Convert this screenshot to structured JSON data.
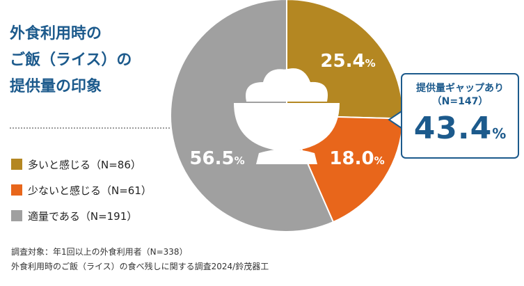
{
  "title_lines": [
    "外食利用時の",
    "ご飯（ライス）の",
    "提供量の印象"
  ],
  "legend": [
    {
      "label": "多いと感じる（N=86）",
      "color": "#b48722"
    },
    {
      "label": "少ないと感じる（N=61）",
      "color": "#e8661b"
    },
    {
      "label": "適量である（N=191）",
      "color": "#a0a0a0"
    }
  ],
  "callout": {
    "title": "提供量ギャップあり",
    "n": "（N=147）",
    "value": "43.4",
    "unit": "%"
  },
  "notes": [
    "調査対象：年1回以上の外食利用者（N=338）",
    "外食利用時のご飯（ライス）の食べ残しに関する調査2024/鈴茂器工"
  ],
  "chart_data": {
    "type": "pie",
    "labels": [
      "多いと感じる（N=86）",
      "少ないと感じる（N=61）",
      "適量である（N=191）"
    ],
    "values": [
      25.4,
      18.0,
      56.5
    ],
    "value_labels": [
      "25.4",
      "18.0",
      "56.5"
    ],
    "unit": "%",
    "colors": [
      "#b48722",
      "#e8661b",
      "#a0a0a0"
    ],
    "title": "外食利用時のご飯（ライス）の提供量の印象",
    "legend_position": "left",
    "center_icon": "rice-bowl-icon"
  }
}
